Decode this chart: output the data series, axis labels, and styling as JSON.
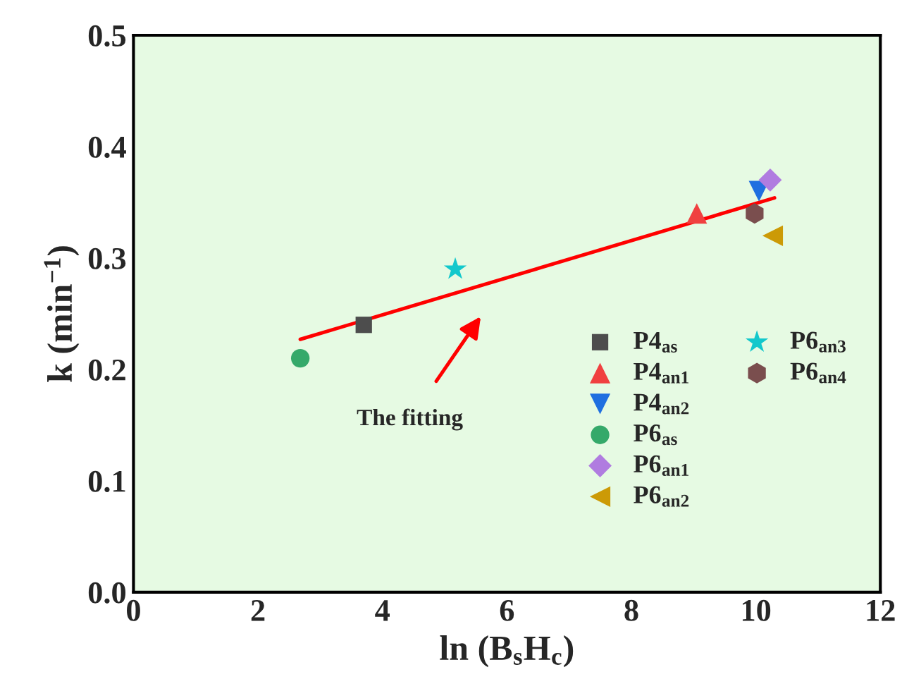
{
  "chart_data": {
    "type": "scatter",
    "xlabel": "ln (B$_{s}$H$_{c}$)",
    "ylabel": "k (min$^{−1}$)",
    "xlim": [
      0,
      12
    ],
    "xticks": [
      0,
      2,
      4,
      6,
      8,
      10,
      12
    ],
    "ylim": [
      0,
      0.5
    ],
    "yticks": [
      {
        "value": 0,
        "label": "0.0"
      },
      0.1,
      0.2,
      0.3,
      0.4,
      0.5
    ],
    "grid": false,
    "legend": "bottom right",
    "series": [
      {
        "name": "P4$_{as}$",
        "color": "#4d4d4d",
        "marker": "square",
        "x": [
          3.7
        ],
        "values": [
          0.24
        ]
      },
      {
        "name": "P4$_{an1}$",
        "color": "#f04040",
        "marker": "triangle",
        "x": [
          9.05
        ],
        "values": [
          0.34
        ]
      },
      {
        "name": "P4$_{an2}$",
        "color": "#1f6fe0",
        "x": [
          10.05
        ],
        "values": [
          0.36
        ]
      },
      {
        "name": "P6$_{as}$",
        "color": "#35a96a",
        "marker": "circle",
        "x": [
          2.68
        ],
        "values": [
          0.21
        ]
      },
      {
        "name": "P6$_{an1}$",
        "color": "#b07ce0",
        "marker": "diamond",
        "x": [
          10.23
        ],
        "values": [
          0.37
        ]
      },
      {
        "name": "P6$_{an2}$",
        "color": "#cc9a06",
        "x": [
          10.27
        ],
        "values": [
          0.32
        ]
      },
      {
        "name": "P6$_{an3}$",
        "color": "#12c8cc",
        "marker": "star",
        "x": [
          5.17
        ],
        "values": [
          0.29
        ]
      },
      {
        "name": "P6$_{an4}$",
        "color": "#7a4e4e",
        "x": [
          9.98
        ],
        "values": [
          0.34
        ]
      },
      {
        "type": "line",
        "color": "#ff0000",
        "marker": "none",
        "x": [
          2.68,
          10.3
        ],
        "values": [
          0.227,
          0.354
        ]
      }
    ],
    "annotations": [
      "The fitting"
    ]
  }
}
